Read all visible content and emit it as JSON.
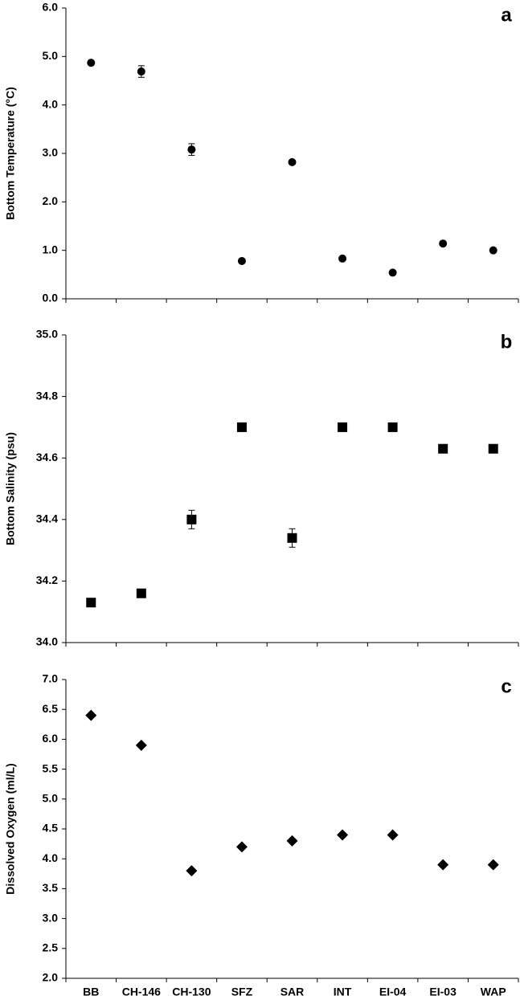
{
  "chart_data": [
    {
      "type": "scatter",
      "panel_label": "a",
      "y_label": "Bottom Temperature (°C)",
      "marker": "circle",
      "color": "#000000",
      "values": [
        4.87,
        4.69,
        3.08,
        0.78,
        2.82,
        0.83,
        0.54,
        1.14,
        1.0
      ],
      "errors": [
        null,
        0.12,
        0.12,
        null,
        null,
        null,
        null,
        null,
        null
      ],
      "ylim": [
        0,
        6
      ],
      "yticks": [
        {
          "value": 0,
          "label": "0.0"
        },
        {
          "value": 1,
          "label": "1.0"
        },
        {
          "value": 2,
          "label": "2.0"
        },
        {
          "value": 3,
          "label": "3.0"
        },
        {
          "value": 4,
          "label": "4.0"
        },
        {
          "value": 5,
          "label": "5.0"
        },
        {
          "value": 6,
          "label": "6.0"
        }
      ]
    },
    {
      "type": "scatter",
      "panel_label": "b",
      "y_label": "Bottom Salinity (psu)",
      "marker": "square",
      "color": "#000000",
      "values": [
        34.13,
        34.16,
        34.4,
        34.7,
        34.34,
        34.7,
        34.7,
        34.63,
        34.63
      ],
      "errors": [
        null,
        null,
        0.03,
        null,
        0.03,
        null,
        null,
        null,
        null
      ],
      "ylim": [
        34,
        35
      ],
      "yticks": [
        {
          "value": 34,
          "label": "34.0"
        },
        34.2,
        34.4,
        34.6,
        34.8,
        {
          "value": 35,
          "label": "35.0"
        }
      ]
    },
    {
      "type": "scatter",
      "panel_label": "c",
      "y_label": "Dissolved Oxygen (ml/L)",
      "marker": "diamond",
      "color": "#000000",
      "categories": [
        "BB",
        "CH-146",
        "CH-130",
        "SFZ",
        "SAR",
        "INT",
        "EI-04",
        "EI-03",
        "WAP"
      ],
      "values": [
        6.4,
        5.9,
        3.8,
        4.2,
        4.3,
        4.4,
        4.4,
        3.9,
        3.9
      ],
      "ylim": [
        2,
        7
      ],
      "yticks": [
        {
          "value": 2,
          "label": "2.0"
        },
        2.5,
        {
          "value": 3,
          "label": "3.0"
        },
        3.5,
        {
          "value": 4,
          "label": "4.0"
        },
        4.5,
        {
          "value": 5,
          "label": "5.0"
        },
        5.5,
        {
          "value": 6,
          "label": "6.0"
        },
        6.5,
        {
          "value": 7,
          "label": "7.0"
        }
      ]
    }
  ]
}
